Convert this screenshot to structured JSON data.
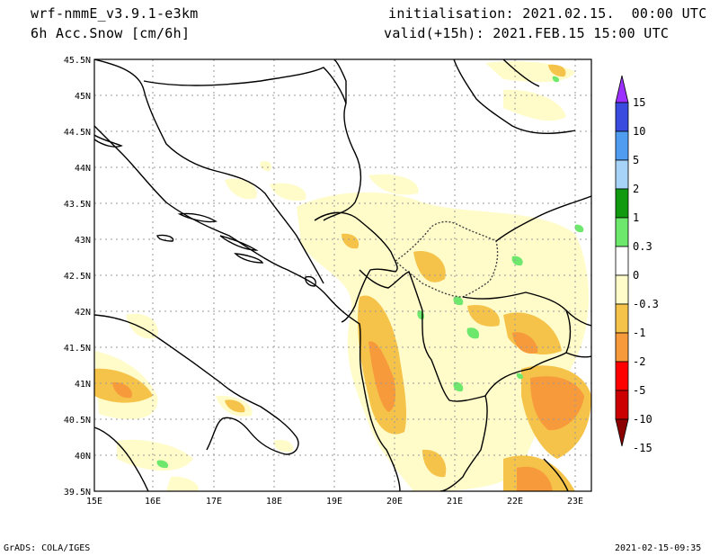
{
  "header": {
    "model": "wrf-nmmE_v3.9.1-e3km",
    "field": "6h Acc.Snow [cm/6h]",
    "initialisation": "initialisation: 2021.02.15.  00:00 UTC",
    "valid": "valid(+15h): 2021.FEB.15 15:00 UTC"
  },
  "map": {
    "lat_labels": [
      "45.5N",
      "45N",
      "44.5N",
      "44N",
      "43.5N",
      "43N",
      "42.5N",
      "42N",
      "41.5N",
      "41N",
      "40.5N",
      "40N",
      "39.5N"
    ],
    "lon_labels": [
      "15E",
      "16E",
      "17E",
      "18E",
      "19E",
      "20E",
      "21E",
      "22E",
      "23E"
    ]
  },
  "legend": {
    "labels": [
      "15",
      "10",
      "5",
      "2",
      "1",
      "0.3",
      "0",
      "-0.3",
      "-1",
      "-2",
      "-5",
      "-10",
      "-15"
    ],
    "colors": [
      "#9b30ff",
      "#3a4ce0",
      "#4f9cf0",
      "#a6d3f7",
      "#0f9a0f",
      "#6de86d",
      "#ffffff",
      "#fffcc9",
      "#f5c34a",
      "#f79a3c",
      "#ff0000",
      "#cc0000",
      "#8b0000"
    ]
  },
  "footer": {
    "left": "GrADS: COLA/IGES",
    "right": "2021-02-15-09:35"
  }
}
